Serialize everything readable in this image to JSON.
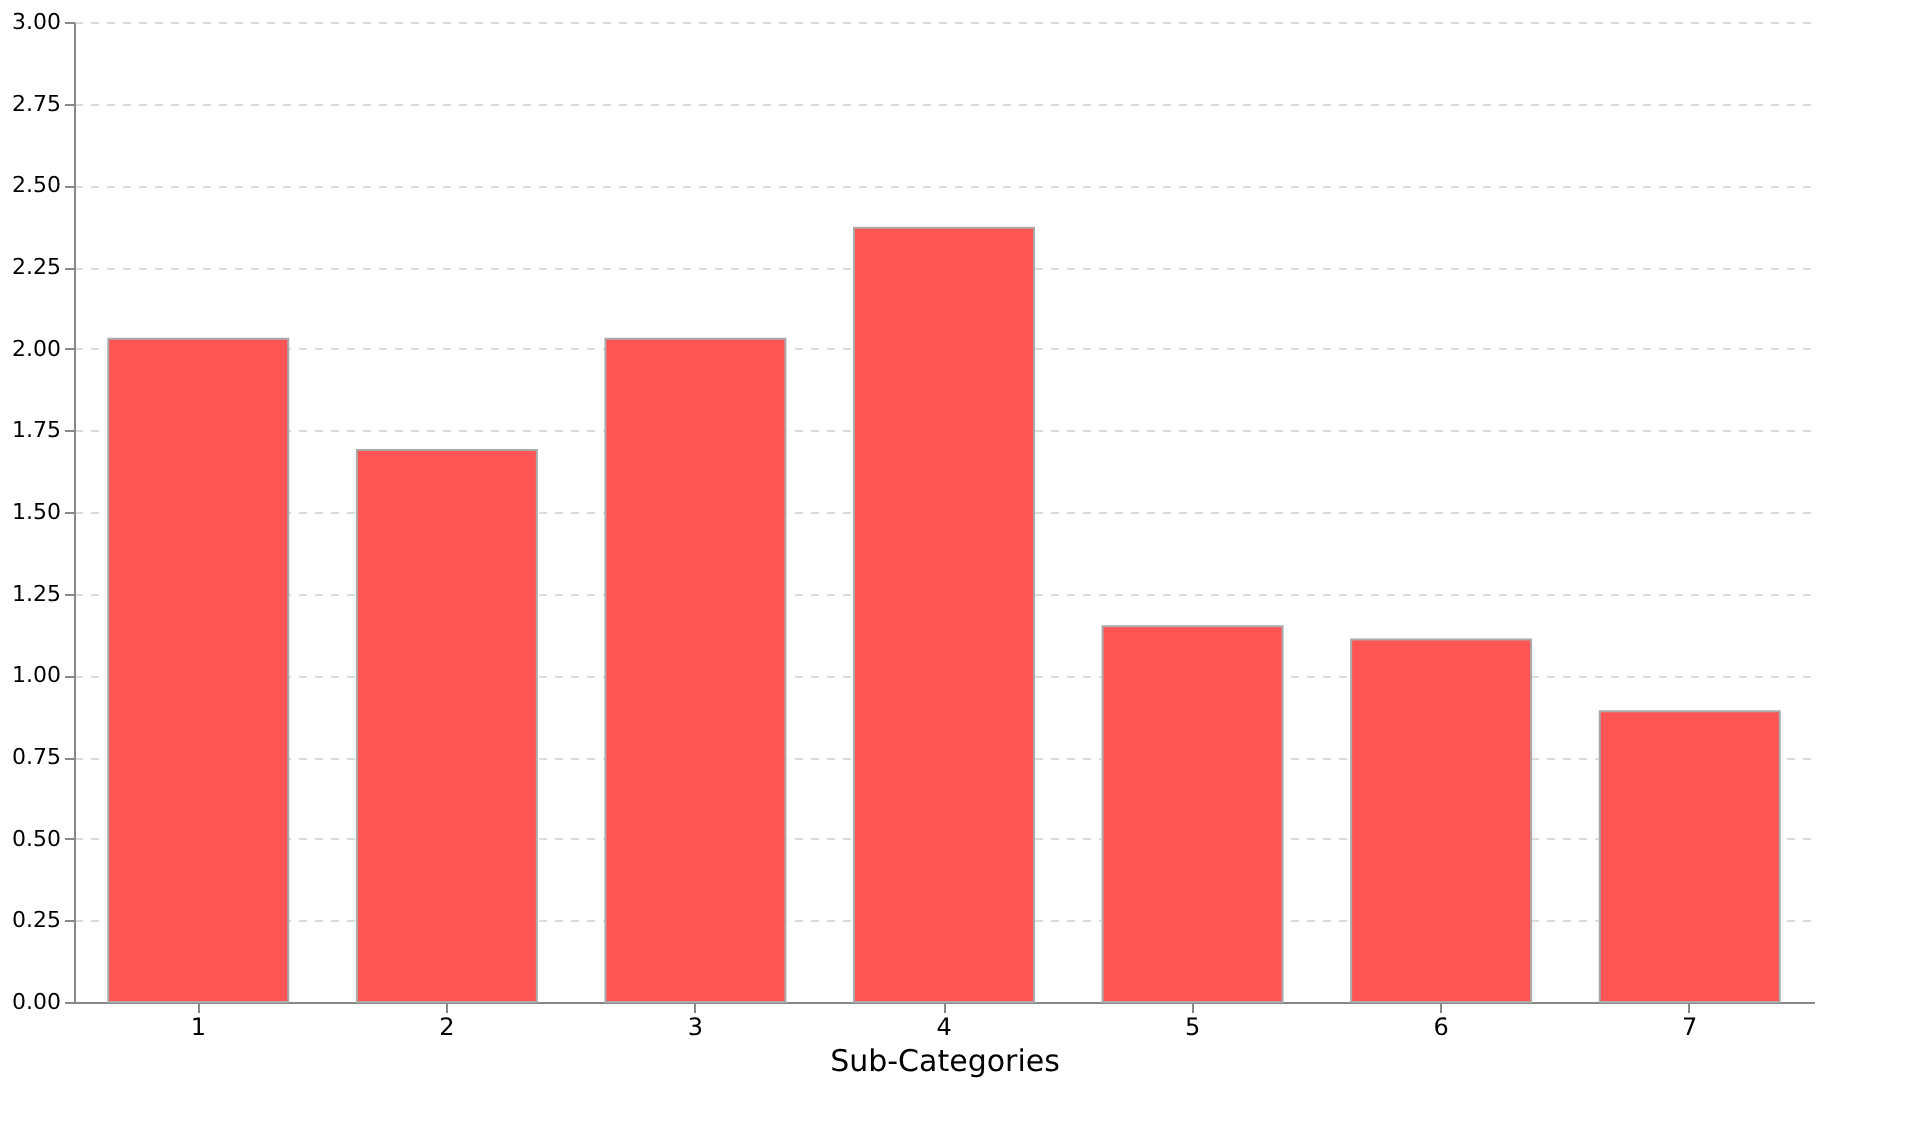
{
  "chart_data": {
    "type": "bar",
    "xlabel": "Sub-Categories",
    "categories": [
      "1",
      "2",
      "3",
      "4",
      "5",
      "6",
      "7"
    ],
    "values": [
      2.03,
      1.69,
      2.03,
      2.37,
      1.15,
      1.11,
      0.89
    ],
    "color": "#ff5555",
    "ylim": [
      0,
      3
    ],
    "yticks": [
      {
        "value": 0,
        "label": "0.00"
      },
      {
        "value": 0.25,
        "label": "0.25"
      },
      {
        "value": 0.5,
        "label": "0.50"
      },
      {
        "value": 0.75,
        "label": "0.75"
      },
      {
        "value": 1,
        "label": "1.00"
      },
      {
        "value": 1.25,
        "label": "1.25"
      },
      {
        "value": 1.5,
        "label": "1.50"
      },
      {
        "value": 1.75,
        "label": "1.75"
      },
      {
        "value": 2,
        "label": "2.00"
      },
      {
        "value": 2.25,
        "label": "2.25"
      },
      {
        "value": 2.5,
        "label": "2.50"
      },
      {
        "value": 2.75,
        "label": "2.75"
      },
      {
        "value": 3,
        "label": "3.00"
      }
    ],
    "grid": "y"
  }
}
